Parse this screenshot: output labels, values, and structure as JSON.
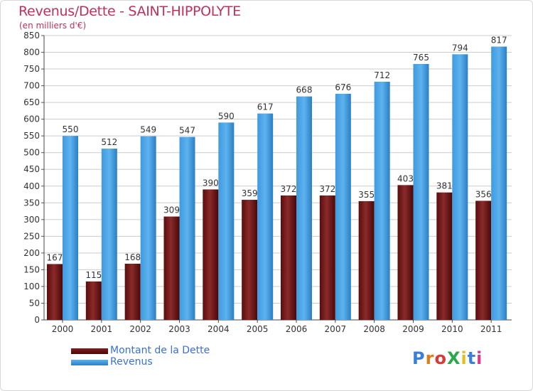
{
  "title": "Revenus/Dette - SAINT-HIPPOLYTE",
  "subtitle": "(en milliers d'€)",
  "logo_text": "ProXiti",
  "colors": {
    "debt": "#7a1f1f",
    "debt_dark": "#4a0a0a",
    "revenue": "#4fa6e6",
    "revenue_dark": "#2a7fc4",
    "title": "#c0305a",
    "legend_text": "#3a6fd8"
  },
  "chart_data": {
    "type": "bar",
    "categories": [
      "2000",
      "2001",
      "2002",
      "2003",
      "2004",
      "2005",
      "2006",
      "2007",
      "2008",
      "2009",
      "2010",
      "2011"
    ],
    "series": [
      {
        "name": "Montant de la Dette",
        "values": [
          167,
          115,
          168,
          309,
          390,
          359,
          372,
          372,
          355,
          403,
          381,
          356
        ]
      },
      {
        "name": "Revenus",
        "values": [
          550,
          512,
          549,
          547,
          590,
          617,
          668,
          676,
          712,
          765,
          794,
          817
        ]
      }
    ],
    "ylim": [
      0,
      850
    ],
    "yticks": [
      0,
      50,
      100,
      150,
      200,
      250,
      300,
      350,
      400,
      450,
      500,
      550,
      600,
      650,
      700,
      750,
      800,
      850
    ],
    "grid": true,
    "legend_position": "bottom-left"
  }
}
